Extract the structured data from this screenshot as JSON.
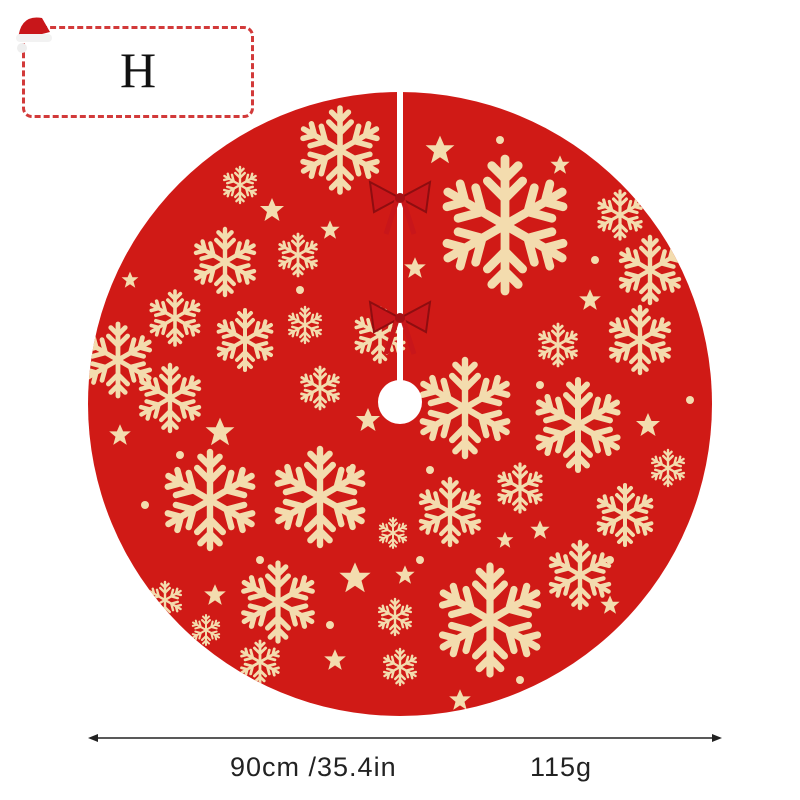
{
  "label": {
    "letter": "H"
  },
  "product": {
    "main_color": "#d01a16",
    "pattern_color": "#f3dcae",
    "icons": [
      "santa-hat-icon",
      "snowflake-icon",
      "star-icon",
      "bow-icon"
    ]
  },
  "dimensions": {
    "size": "90cm /35.4in",
    "weight": "115g"
  }
}
